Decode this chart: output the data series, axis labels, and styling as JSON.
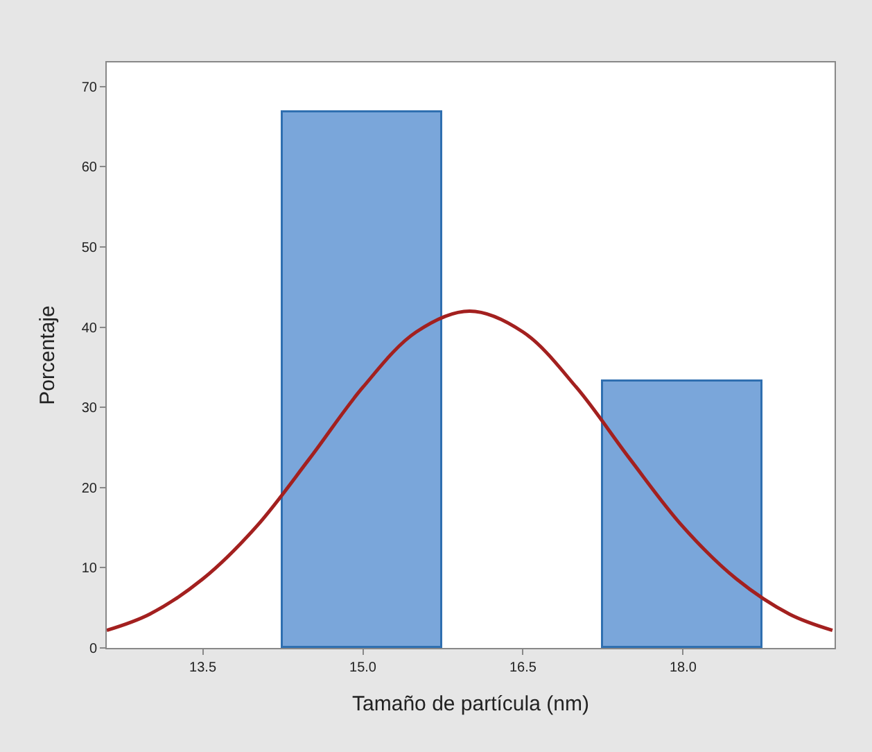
{
  "chart_data": {
    "type": "histogram",
    "xlabel": "Tamaño de partícula (nm)",
    "ylabel": "Porcentaje",
    "bins": [
      14.25,
      15.75,
      17.25,
      18.75
    ],
    "values": [
      66.7,
      0,
      33.3
    ],
    "color": "#7aa6da",
    "series": [
      {
        "type": "line",
        "color": "#a3201f",
        "x": [
          12.6,
          13.0,
          13.5,
          14.0,
          14.5,
          15.0,
          15.5,
          16.0,
          16.5,
          17.0,
          17.5,
          18.0,
          18.5,
          19.0,
          19.4
        ],
        "values": [
          2.2,
          4.2,
          8.6,
          15.1,
          23.6,
          32.5,
          39.4,
          42,
          39.4,
          32.5,
          23.6,
          15.1,
          8.6,
          4.2,
          2.2
        ]
      }
    ],
    "xlim": [
      12.6,
      19.42
    ],
    "xticks": [
      13.5,
      {
        "value": 15,
        "label": "15.0"
      },
      16.5,
      {
        "value": 18,
        "label": "18.0"
      }
    ],
    "ylim": [
      0,
      73
    ],
    "yticks": [
      0,
      10,
      20,
      30,
      40,
      50,
      60,
      70
    ]
  }
}
